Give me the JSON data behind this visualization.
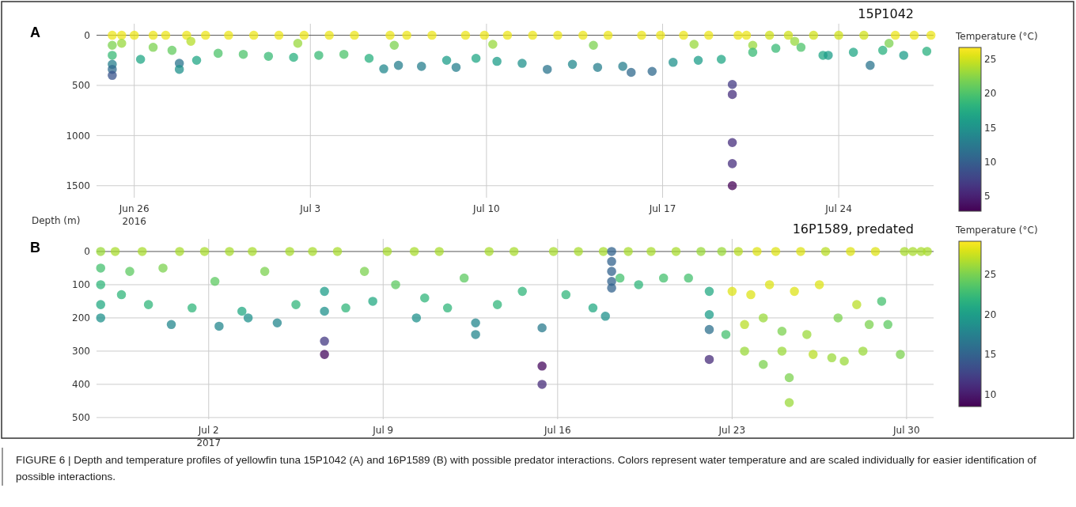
{
  "chart_data": [
    {
      "type": "scatter",
      "title": "A",
      "ylabel": "Depth (m)",
      "clabel": "Temperature (°C)",
      "annotations": [
        "15P1042"
      ],
      "marker": "circle",
      "grid": true,
      "x": [
        "2016-06-25T03:00",
        "2016-06-25T03:00",
        "2016-06-25T03:00",
        "2016-06-25T03:00",
        "2016-06-25T03:00",
        "2016-06-25T03:00",
        "2016-06-25T12:00",
        "2016-06-25T12:00",
        "2016-06-26T00:00",
        "2016-06-26T06:00",
        "2016-06-26T18:00",
        "2016-06-26T18:00",
        "2016-06-27T06:00",
        "2016-06-27T12:00",
        "2016-06-27T19:00",
        "2016-06-27T19:00",
        "2016-06-28T02:00",
        "2016-06-28T11:30",
        "2016-06-28T20:00",
        "2016-06-29T08:00",
        "2016-06-29T18:00",
        "2016-06-30T08:00",
        "2016-06-30T18:00",
        "2016-07-01T08:00",
        "2016-07-01T18:00",
        "2016-07-02T08:00",
        "2016-07-02T18:00",
        "2016-07-03T08:00",
        "2016-07-03T18:00",
        "2016-07-04T08:00",
        "2016-07-04T18:00",
        "2016-07-05T08:00",
        "2016-07-05T22:00",
        "2016-07-06T04:00",
        "2016-07-06T12:00",
        "2016-07-06T20:00",
        "2016-07-07T10:00",
        "2016-07-07T20:00",
        "2016-07-08T10:00",
        "2016-07-08T19:00",
        "2016-07-09T04:00",
        "2016-07-09T14:00",
        "2016-07-09T22:00",
        "2016-07-10T10:00",
        "2016-07-10T20:00",
        "2016-07-11T10:00",
        "2016-07-11T20:00",
        "2016-07-12T10:00",
        "2016-07-12T20:00",
        "2016-07-13T10:00",
        "2016-07-13T20:00",
        "2016-07-14T10:00",
        "2016-07-14T20:00",
        "2016-07-15T10:00",
        "2016-07-15T18:00",
        "2016-07-16T04:00",
        "2016-07-16T14:00",
        "2016-07-16T22:00",
        "2016-07-17T10:00",
        "2016-07-17T20:00",
        "2016-07-18T10:00",
        "2016-07-18T20:00",
        "2016-07-19T08:00",
        "2016-07-19T18:30",
        "2016-07-19T18:30",
        "2016-07-19T18:30",
        "2016-07-19T18:30",
        "2016-07-19T18:30",
        "2016-07-20T00:00",
        "2016-07-20T08:00",
        "2016-07-20T14:00",
        "2016-07-20T14:00",
        "2016-07-21T06:00",
        "2016-07-21T12:00",
        "2016-07-22T00:00",
        "2016-07-22T12:00",
        "2016-07-23T00:00",
        "2016-07-23T09:00",
        "2016-07-23T14:00",
        "2016-07-24T00:00",
        "2016-07-24T14:00",
        "2016-07-25T00:00",
        "2016-07-25T06:00",
        "2016-07-25T18:00",
        "2016-07-26T06:00",
        "2016-07-26T14:00",
        "2016-07-27T00:00",
        "2016-07-27T12:00",
        "2016-07-27T16:00",
        "2016-06-28T06:00",
        "2016-07-02T12:00",
        "2016-07-06T08:00",
        "2016-07-10T06:00",
        "2016-07-14T06:00",
        "2016-07-18T06:00",
        "2016-07-22T06:00",
        "2016-07-26T00:00"
      ],
      "values": [
        0,
        100,
        200,
        290,
        340,
        400,
        0,
        80,
        0,
        240,
        0,
        120,
        0,
        150,
        280,
        340,
        0,
        250,
        0,
        180,
        0,
        190,
        0,
        210,
        0,
        220,
        0,
        200,
        0,
        190,
        0,
        230,
        335,
        0,
        300,
        0,
        310,
        0,
        250,
        320,
        0,
        230,
        0,
        260,
        0,
        280,
        0,
        340,
        0,
        290,
        0,
        320,
        0,
        310,
        370,
        0,
        360,
        0,
        270,
        0,
        250,
        0,
        240,
        490,
        590,
        1070,
        1280,
        1500,
        0,
        0,
        100,
        170,
        0,
        130,
        0,
        120,
        0,
        200,
        200,
        0,
        170,
        0,
        300,
        150,
        0,
        200,
        0,
        160,
        0,
        60,
        80,
        100,
        90,
        100,
        90,
        60,
        80
      ],
      "cvalues": [
        26,
        22,
        19,
        13,
        11,
        9,
        26,
        23,
        26,
        17,
        26,
        22,
        26,
        21,
        12,
        15,
        26,
        17,
        26,
        20,
        26,
        20,
        26,
        19,
        26,
        18,
        26,
        19,
        26,
        20,
        26,
        18,
        14,
        26,
        13,
        26,
        13,
        26,
        16,
        13,
        26,
        17,
        26,
        16,
        26,
        15,
        26,
        12,
        26,
        14,
        26,
        13,
        26,
        13,
        11,
        26,
        11,
        26,
        15,
        26,
        16,
        26,
        17,
        7,
        6,
        6,
        6,
        3,
        26,
        26,
        23,
        19,
        25,
        19,
        25,
        20,
        25,
        17,
        16,
        25,
        17,
        25,
        12,
        18,
        26,
        16,
        26,
        18,
        26,
        24,
        23,
        22,
        23,
        22,
        23,
        23,
        22
      ],
      "xlim": [
        "2016-06-24T12:00",
        "2016-07-27T18:30"
      ],
      "ylim": [
        1620,
        -115
      ],
      "xticks": [
        {
          "value": "2016-06-26",
          "label": "Jun 26\n2016"
        },
        {
          "value": "2016-07-03",
          "label": "Jul 3"
        },
        {
          "value": "2016-07-10",
          "label": "Jul 10"
        },
        {
          "value": "2016-07-17",
          "label": "Jul 17"
        },
        {
          "value": "2016-07-24",
          "label": "Jul 24"
        }
      ],
      "yticks": [
        0,
        500,
        1000,
        1500
      ],
      "clim": [
        2.8,
        26.7
      ],
      "cticks": [
        5,
        10,
        15,
        20,
        25
      ]
    },
    {
      "type": "scatter",
      "title": "B",
      "clabel": "Temperature (°C)",
      "annotations": [
        "16P1589, predated",
        "FIGURE 6 | Depth and temperature profiles of yellowfin tuna 15P1042 (A) and 16P1589 (B) with possible predator interactions. Colors represent water temperature and are scaled individually for easier identification of possible interactions."
      ],
      "marker": "circle",
      "grid": true,
      "x": [
        "2017-06-27T16:00",
        "2017-06-27T16:00",
        "2017-06-27T16:00",
        "2017-06-27T16:00",
        "2017-06-27T16:00",
        "2017-06-28T06:00",
        "2017-06-28T12:00",
        "2017-06-28T20:00",
        "2017-06-29T08:00",
        "2017-06-29T14:00",
        "2017-06-30T04:00",
        "2017-06-30T12:00",
        "2017-06-30T20:00",
        "2017-07-01T08:00",
        "2017-07-01T20:00",
        "2017-07-02T06:00",
        "2017-07-02T10:00",
        "2017-07-02T20:00",
        "2017-07-03T08:00",
        "2017-07-03T18:00",
        "2017-07-03T14:00",
        "2017-07-04T06:00",
        "2017-07-04T18:00",
        "2017-07-05T06:00",
        "2017-07-05T12:00",
        "2017-07-06T04:00",
        "2017-07-06T15:30",
        "2017-07-06T15:30",
        "2017-07-06T15:30",
        "2017-07-06T15:30",
        "2017-07-07T04:00",
        "2017-07-07T12:00",
        "2017-07-08T06:00",
        "2017-07-08T14:00",
        "2017-07-09T04:00",
        "2017-07-09T12:00",
        "2017-07-10T06:00",
        "2017-07-10T08:00",
        "2017-07-10T16:00",
        "2017-07-11T06:00",
        "2017-07-11T14:00",
        "2017-07-12T06:00",
        "2017-07-12T17:00",
        "2017-07-12T17:00",
        "2017-07-13T06:00",
        "2017-07-13T14:00",
        "2017-07-14T06:00",
        "2017-07-14T14:00",
        "2017-07-15T09:00",
        "2017-07-15T09:00",
        "2017-07-15T09:00",
        "2017-07-15T20:00",
        "2017-07-16T08:00",
        "2017-07-16T20:00",
        "2017-07-17T10:00",
        "2017-07-17T20:00",
        "2017-07-18T04:00",
        "2017-07-18T04:00",
        "2017-07-18T04:00",
        "2017-07-18T04:00",
        "2017-07-18T04:00",
        "2017-07-17T22:00",
        "2017-07-18T12:00",
        "2017-07-18T20:00",
        "2017-07-19T06:00",
        "2017-07-19T18:00",
        "2017-07-20T06:00",
        "2017-07-20T18:00",
        "2017-07-21T06:00",
        "2017-07-21T18:00",
        "2017-07-22T02:00",
        "2017-07-22T02:00",
        "2017-07-22T02:00",
        "2017-07-22T02:00",
        "2017-07-22T14:00",
        "2017-07-22T18:00",
        "2017-07-23T00:00",
        "2017-07-23T06:00",
        "2017-07-23T12:00",
        "2017-07-23T12:00",
        "2017-07-23T18:00",
        "2017-07-24T00:00",
        "2017-07-24T06:00",
        "2017-07-24T06:00",
        "2017-07-24T12:00",
        "2017-07-24T18:00",
        "2017-07-25T00:00",
        "2017-07-25T00:00",
        "2017-07-25T07:00",
        "2017-07-25T07:00",
        "2017-07-25T12:00",
        "2017-07-25T18:00",
        "2017-07-26T00:00",
        "2017-07-26T06:00",
        "2017-07-26T12:00",
        "2017-07-26T18:00",
        "2017-07-27T00:00",
        "2017-07-27T06:00",
        "2017-07-27T12:00",
        "2017-07-27T18:00",
        "2017-07-28T00:00",
        "2017-07-28T06:00",
        "2017-07-28T12:00",
        "2017-07-28T18:00",
        "2017-07-29T00:00",
        "2017-07-29T06:00",
        "2017-07-29T18:00",
        "2017-07-29T22:00",
        "2017-07-30T06:00",
        "2017-07-30T14:00",
        "2017-07-30T20:00"
      ],
      "values": [
        0,
        50,
        100,
        160,
        200,
        0,
        130,
        60,
        0,
        160,
        50,
        220,
        0,
        170,
        0,
        90,
        225,
        0,
        180,
        0,
        200,
        60,
        215,
        0,
        160,
        0,
        270,
        310,
        180,
        120,
        0,
        170,
        60,
        150,
        0,
        100,
        0,
        200,
        140,
        0,
        170,
        80,
        215,
        250,
        0,
        160,
        0,
        120,
        230,
        345,
        400,
        0,
        130,
        0,
        170,
        0,
        0,
        30,
        60,
        90,
        110,
        195,
        80,
        0,
        100,
        0,
        80,
        0,
        80,
        0,
        190,
        235,
        325,
        120,
        0,
        250,
        120,
        0,
        300,
        220,
        130,
        0,
        340,
        200,
        100,
        0,
        300,
        240,
        380,
        455,
        120,
        0,
        250,
        310,
        100,
        0,
        320,
        200,
        330,
        0,
        160,
        300,
        220,
        0,
        150,
        220,
        310,
        0,
        0,
        0,
        0
      ],
      "cvalues": [
        26,
        23,
        22,
        21,
        19,
        26.5,
        22,
        24,
        26.5,
        22,
        25,
        18,
        26.5,
        22,
        26.5,
        24,
        18,
        26.5,
        21,
        26.5,
        19,
        25,
        18,
        26.5,
        22,
        26.5,
        12,
        9,
        19,
        20,
        26.5,
        22,
        25,
        21,
        26.5,
        24,
        26.5,
        19,
        22,
        26.5,
        22,
        24,
        18,
        18,
        26.5,
        22,
        26.5,
        22,
        17,
        9,
        11,
        26.5,
        22,
        26.5,
        21,
        26.5,
        15,
        15,
        15,
        15,
        15,
        19,
        23,
        26.5,
        22,
        26.5,
        23,
        26.5,
        23,
        26,
        20,
        16,
        11,
        21,
        26,
        23,
        28,
        27,
        26,
        27,
        28,
        28,
        25,
        26,
        28,
        28,
        26,
        25,
        25,
        26,
        28,
        28,
        26,
        27,
        28,
        27,
        26,
        25,
        26,
        28,
        27,
        26,
        25,
        28,
        23,
        24,
        25,
        26.5,
        26.5,
        26.5,
        26.5
      ],
      "xlim": [
        "2017-06-27T12:00",
        "2017-07-31T02:00"
      ],
      "ylim": [
        505,
        -38
      ],
      "xticks": [
        {
          "value": "2017-07-02",
          "label": "Jul 2\n2017"
        },
        {
          "value": "2017-07-09",
          "label": "Jul 9"
        },
        {
          "value": "2017-07-16",
          "label": "Jul 16"
        },
        {
          "value": "2017-07-23",
          "label": "Jul 23"
        },
        {
          "value": "2017-07-30",
          "label": "Jul 30"
        }
      ],
      "yticks": [
        0,
        100,
        200,
        300,
        400,
        500
      ],
      "clim": [
        8.5,
        29.1
      ],
      "cticks": [
        10,
        15,
        20,
        25
      ]
    }
  ]
}
